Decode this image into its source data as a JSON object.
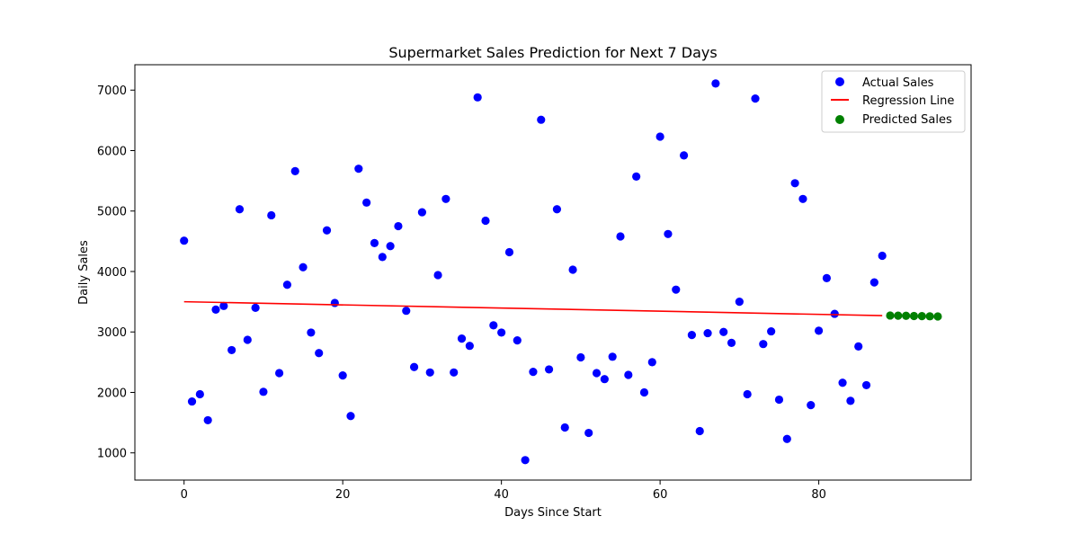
{
  "chart_data": {
    "type": "scatter",
    "title": "Supermarket Sales Prediction for Next 7 Days",
    "xlabel": "Days Since Start",
    "ylabel": "Daily Sales",
    "xlim": [
      -6.2,
      99.2
    ],
    "ylim": [
      550,
      7420
    ],
    "x_ticks": [
      0,
      20,
      40,
      60,
      80
    ],
    "y_ticks": [
      1000,
      2000,
      3000,
      4000,
      5000,
      6000,
      7000
    ],
    "grid": false,
    "legend_position": "top-right",
    "series": [
      {
        "name": "Actual Sales",
        "kind": "scatter",
        "color": "#0000ff",
        "points": [
          [
            0,
            4510
          ],
          [
            1,
            1850
          ],
          [
            2,
            1970
          ],
          [
            3,
            1540
          ],
          [
            4,
            3370
          ],
          [
            5,
            3430
          ],
          [
            6,
            2700
          ],
          [
            7,
            5030
          ],
          [
            8,
            2870
          ],
          [
            9,
            3400
          ],
          [
            10,
            2010
          ],
          [
            11,
            4930
          ],
          [
            12,
            2320
          ],
          [
            13,
            3780
          ],
          [
            14,
            5660
          ],
          [
            15,
            4070
          ],
          [
            16,
            2990
          ],
          [
            17,
            2650
          ],
          [
            18,
            4680
          ],
          [
            19,
            3480
          ],
          [
            20,
            2280
          ],
          [
            21,
            1610
          ],
          [
            22,
            5700
          ],
          [
            23,
            5140
          ],
          [
            24,
            4470
          ],
          [
            25,
            4240
          ],
          [
            26,
            4420
          ],
          [
            27,
            4750
          ],
          [
            28,
            3350
          ],
          [
            29,
            2420
          ],
          [
            30,
            4980
          ],
          [
            31,
            2330
          ],
          [
            32,
            3940
          ],
          [
            33,
            5200
          ],
          [
            34,
            2330
          ],
          [
            35,
            2890
          ],
          [
            36,
            2770
          ],
          [
            37,
            6880
          ],
          [
            38,
            4840
          ],
          [
            39,
            3110
          ],
          [
            40,
            2990
          ],
          [
            41,
            4320
          ],
          [
            42,
            2860
          ],
          [
            43,
            880
          ],
          [
            44,
            2340
          ],
          [
            45,
            6510
          ],
          [
            46,
            2380
          ],
          [
            47,
            5030
          ],
          [
            48,
            1420
          ],
          [
            49,
            4030
          ],
          [
            50,
            2580
          ],
          [
            51,
            1330
          ],
          [
            52,
            2320
          ],
          [
            53,
            2220
          ],
          [
            54,
            2590
          ],
          [
            55,
            4580
          ],
          [
            56,
            2290
          ],
          [
            57,
            5570
          ],
          [
            58,
            2000
          ],
          [
            59,
            2500
          ],
          [
            60,
            6230
          ],
          [
            61,
            4620
          ],
          [
            62,
            3700
          ],
          [
            63,
            5920
          ],
          [
            64,
            2950
          ],
          [
            65,
            1360
          ],
          [
            66,
            2980
          ],
          [
            67,
            7110
          ],
          [
            68,
            3000
          ],
          [
            69,
            2820
          ],
          [
            70,
            3500
          ],
          [
            71,
            1970
          ],
          [
            72,
            6860
          ],
          [
            73,
            2800
          ],
          [
            74,
            3010
          ],
          [
            75,
            1880
          ],
          [
            76,
            1230
          ],
          [
            77,
            5460
          ],
          [
            78,
            5200
          ],
          [
            79,
            1790
          ],
          [
            80,
            3020
          ],
          [
            81,
            3890
          ],
          [
            82,
            3300
          ],
          [
            83,
            2160
          ],
          [
            84,
            1860
          ],
          [
            85,
            2760
          ],
          [
            86,
            2120
          ],
          [
            87,
            3820
          ],
          [
            88,
            4260
          ]
        ]
      },
      {
        "name": "Regression Line",
        "kind": "line",
        "color": "#ff0000",
        "points": [
          [
            0,
            3500
          ],
          [
            88,
            3270
          ]
        ]
      },
      {
        "name": "Predicted Sales",
        "kind": "scatter",
        "color": "#008000",
        "points": [
          [
            89,
            3272
          ],
          [
            90,
            3269
          ],
          [
            91,
            3267
          ],
          [
            92,
            3264
          ],
          [
            93,
            3262
          ],
          [
            94,
            3259
          ],
          [
            95,
            3256
          ]
        ]
      }
    ]
  }
}
